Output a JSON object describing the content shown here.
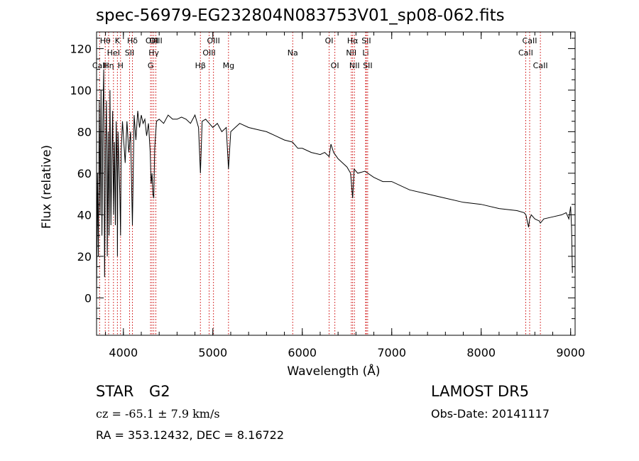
{
  "header": {
    "title": "spec-56979-EG232804N083753V01_sp08-062.fits"
  },
  "info": {
    "object_type": "STAR",
    "subclass": "G2",
    "survey": "LAMOST DR5",
    "cz": "cz = -65.1 ± 7.9 km/s",
    "obs_date": "Obs-Date: 20141117",
    "radec": "RA = 353.12432, DEC =   8.16722"
  },
  "colors": {
    "spectrum": "#000000",
    "line_markers": "#cc0000",
    "axes": "#000000"
  },
  "chart_data": {
    "type": "line",
    "title": "spec-56979-EG232804N083753V01_sp08-062.fits",
    "xlabel": "Wavelength (Å)",
    "ylabel": "Flux (relative)",
    "xlim": [
      3700,
      9050
    ],
    "ylim": [
      -18,
      128
    ],
    "xticks": [
      4000,
      5000,
      6000,
      7000,
      8000,
      9000
    ],
    "yticks": [
      0,
      20,
      40,
      60,
      80,
      100,
      120
    ],
    "grid": false,
    "series": [
      {
        "x": [
          3700,
          3710,
          3720,
          3730,
          3740,
          3750,
          3760,
          3770,
          3780,
          3790,
          3800,
          3810,
          3820,
          3830,
          3840,
          3850,
          3860,
          3870,
          3880,
          3890,
          3900,
          3910,
          3920,
          3930,
          3933,
          3940,
          3950,
          3960,
          3968,
          3975,
          3990,
          4000,
          4020,
          4040,
          4060,
          4080,
          4101,
          4120,
          4140,
          4160,
          4180,
          4200,
          4220,
          4240,
          4260,
          4280,
          4300,
          4310,
          4320,
          4330,
          4340,
          4350,
          4370,
          4400,
          4450,
          4500,
          4550,
          4600,
          4650,
          4700,
          4750,
          4800,
          4840,
          4861,
          4880,
          4920,
          4960,
          5000,
          5050,
          5100,
          5150,
          5175,
          5200,
          5250,
          5300,
          5400,
          5500,
          5600,
          5700,
          5800,
          5890,
          5950,
          6000,
          6100,
          6200,
          6250,
          6300,
          6320,
          6350,
          6400,
          6450,
          6500,
          6540,
          6563,
          6580,
          6620,
          6700,
          6800,
          6900,
          7000,
          7200,
          7400,
          7600,
          7800,
          8000,
          8200,
          8400,
          8480,
          8500,
          8530,
          8542,
          8560,
          8600,
          8650,
          8662,
          8700,
          8800,
          8900,
          8950,
          8980,
          9000,
          9010,
          9020
        ],
        "y": [
          0,
          60,
          20,
          95,
          40,
          100,
          30,
          85,
          110,
          10,
          70,
          95,
          20,
          80,
          30,
          100,
          35,
          65,
          90,
          40,
          75,
          35,
          85,
          60,
          20,
          80,
          65,
          50,
          30,
          70,
          85,
          78,
          65,
          85,
          70,
          80,
          35,
          88,
          76,
          90,
          82,
          88,
          84,
          86,
          78,
          84,
          70,
          55,
          60,
          50,
          48,
          72,
          85,
          86,
          84,
          88,
          86,
          86,
          87,
          86,
          84,
          88,
          82,
          60,
          85,
          86,
          84,
          82,
          84,
          80,
          82,
          62,
          80,
          82,
          84,
          82,
          81,
          80,
          78,
          76,
          75,
          72,
          72,
          70,
          69,
          70,
          68,
          74,
          70,
          67,
          65,
          63,
          60,
          48,
          62,
          60,
          61,
          58,
          56,
          56,
          52,
          50,
          48,
          46,
          45,
          43,
          42,
          41,
          40,
          34,
          38,
          40,
          38,
          37,
          36,
          38,
          39,
          40,
          41,
          38,
          44,
          34,
          12
        ]
      }
    ],
    "line_markers": [
      {
        "label": "CaII",
        "x": 3734,
        "row": 2
      },
      {
        "label": "Hθ",
        "x": 3797,
        "row": 0
      },
      {
        "label": "Hη",
        "x": 3835,
        "row": 2
      },
      {
        "label": "HeI",
        "x": 3889,
        "row": 1
      },
      {
        "label": "K",
        "x": 3933,
        "row": 0
      },
      {
        "label": "H",
        "x": 3968,
        "row": 2
      },
      {
        "label": "SII",
        "x": 4069,
        "row": 1
      },
      {
        "label": "Hδ",
        "x": 4101,
        "row": 0
      },
      {
        "label": "G",
        "x": 4304,
        "row": 2
      },
      {
        "label": "OIII",
        "x": 4320,
        "row": 0
      },
      {
        "label": "Hγ",
        "x": 4340,
        "row": 1
      },
      {
        "label": "OIII",
        "x": 4363,
        "row": 0
      },
      {
        "label": "Hβ",
        "x": 4861,
        "row": 2
      },
      {
        "label": "OIII",
        "x": 4959,
        "row": 1
      },
      {
        "label": "OIII",
        "x": 5007,
        "row": 0
      },
      {
        "label": "Mg",
        "x": 5175,
        "row": 2
      },
      {
        "label": "Na",
        "x": 5893,
        "row": 1
      },
      {
        "label": "OI",
        "x": 6300,
        "row": 0
      },
      {
        "label": "OI",
        "x": 6364,
        "row": 2
      },
      {
        "label": "NII",
        "x": 6548,
        "row": 1
      },
      {
        "label": "Hα",
        "x": 6563,
        "row": 0
      },
      {
        "label": "NII",
        "x": 6583,
        "row": 2
      },
      {
        "label": "Li",
        "x": 6708,
        "row": 1
      },
      {
        "label": "SII",
        "x": 6716,
        "row": 0
      },
      {
        "label": "SII",
        "x": 6731,
        "row": 2
      },
      {
        "label": "CaII",
        "x": 8498,
        "row": 1
      },
      {
        "label": "CaII",
        "x": 8542,
        "row": 0
      },
      {
        "label": "CaII",
        "x": 8662,
        "row": 2
      }
    ]
  }
}
